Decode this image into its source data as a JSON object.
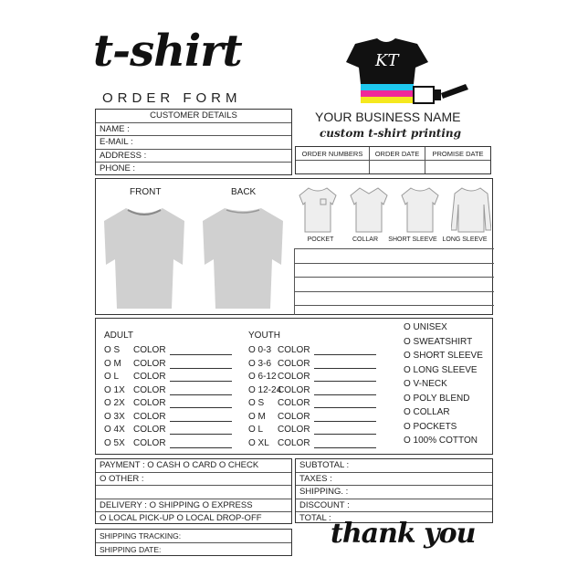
{
  "header": {
    "title": "t-shirt",
    "subtitle": "ORDER FORM",
    "logo_text": "KT",
    "business_name": "YOUR BUSINESS NAME",
    "tagline": "custom t-shirt printing"
  },
  "customer": {
    "heading": "CUSTOMER DETAILS",
    "fields": [
      "NAME :",
      "E-MAIL :",
      "ADDRESS :",
      "PHONE :"
    ]
  },
  "order_table": {
    "columns": [
      "ORDER NUMBERS",
      "ORDER DATE",
      "PROMISE DATE"
    ]
  },
  "design": {
    "front": "FRONT",
    "back": "BACK",
    "styles": [
      "POCKET",
      "COLLAR",
      "SHORT SLEEVE",
      "LONG SLEEVE"
    ]
  },
  "sizes": {
    "adult_label": "ADULT",
    "adult": [
      "O S",
      "O M",
      "O L",
      "O 1X",
      "O 2X",
      "O 3X",
      "O 4X",
      "O 5X"
    ],
    "youth_label": "YOUTH",
    "youth": [
      "O 0-3",
      "O 3-6",
      "O 6-12",
      "O 12-24",
      "O S",
      "O M",
      "O L",
      "O XL"
    ],
    "color_label": "COLOR",
    "options": [
      "O UNISEX",
      "O SWEATSHIRT",
      "O SHORT SLEEVE",
      "O LONG SLEEVE",
      "O V-NECK",
      "O POLY BLEND",
      "O COLLAR",
      "O POCKETS",
      "O 100% COTTON"
    ]
  },
  "payment": {
    "rows": [
      "PAYMENT : O CASH   O CARD   O CHECK",
      "O OTHER :",
      "",
      "DELIVERY : O SHIPPING   O EXPRESS",
      "O LOCAL PICK-UP   O LOCAL DROP-OFF"
    ]
  },
  "totals": {
    "rows": [
      "SUBTOTAL :",
      "TAXES :",
      "SHIPPING. :",
      "DISCOUNT :",
      "TOTAL :"
    ]
  },
  "shipping": {
    "rows": [
      "SHIPPING TRACKING:",
      "SHIPPING DATE:"
    ]
  },
  "footer": {
    "thanks": "thank you"
  },
  "colors": {
    "cyan": "#1ec8f0",
    "magenta": "#f0289a",
    "yellow": "#f5e81e",
    "shirt_gray": "#c8c8c8"
  }
}
